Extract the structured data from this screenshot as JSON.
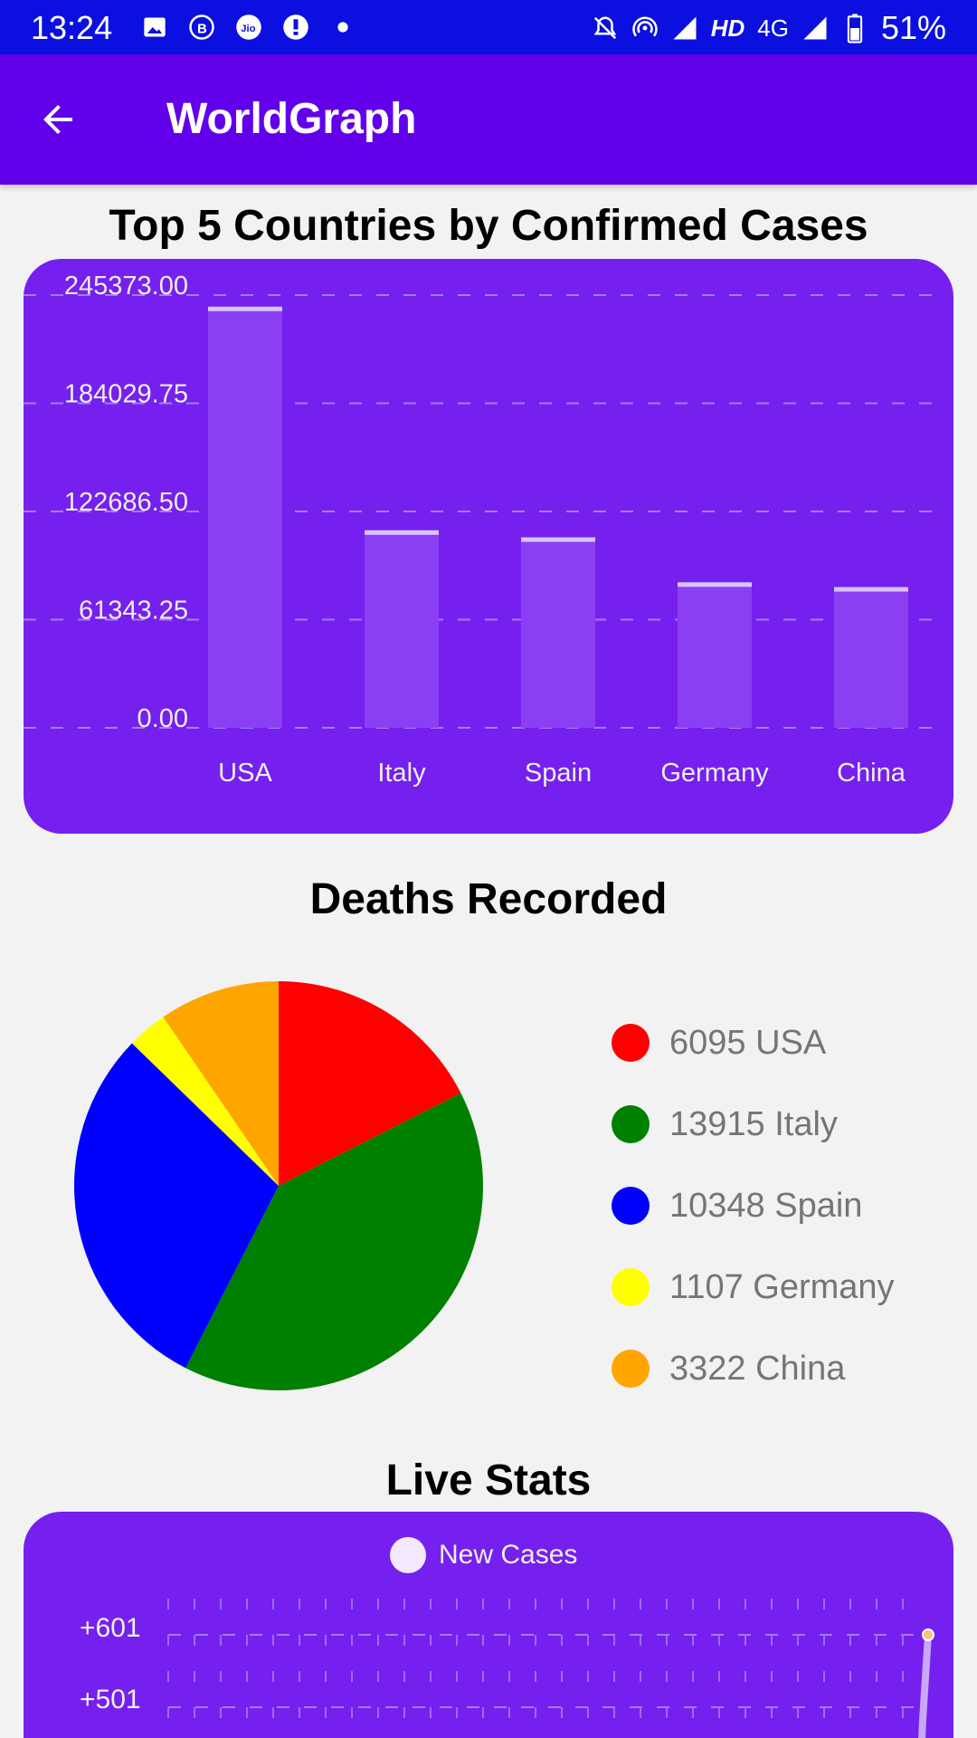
{
  "status_bar": {
    "time": "13:24",
    "network": "HD",
    "network_type": "4G",
    "battery": "51%",
    "icons": [
      "image-icon",
      "b-icon",
      "jio-icon",
      "location-icon",
      "dot-icon",
      "mute-icon",
      "hotspot-icon",
      "signal-icon",
      "battery-icon"
    ]
  },
  "app_bar": {
    "title": "WorldGraph",
    "back_icon": "arrow-back-icon"
  },
  "colors": {
    "status_bar": "#0b10e0",
    "app_bar": "#6200ea",
    "card": "#7520ee",
    "bar_fill": "#8a3ff3"
  },
  "bar_section": {
    "title": "Top 5 Countries by Confirmed Cases"
  },
  "pie_section": {
    "title": "Deaths Recorded"
  },
  "live_section": {
    "title": "Live Stats",
    "legend": "New Cases",
    "yticks": [
      "+601",
      "+501"
    ]
  },
  "chart_data": [
    {
      "type": "bar",
      "title": "Top 5 Countries by Confirmed Cases",
      "categories": [
        "USA",
        "Italy",
        "Spain",
        "Germany",
        "China"
      ],
      "values": [
        238820,
        112000,
        108000,
        82500,
        79800
      ],
      "ylim": [
        0,
        245373
      ],
      "ytick_labels": [
        "0.00",
        "61343.25",
        "122686.50",
        "184029.75",
        "245373.00"
      ],
      "ytick_values": [
        0,
        61343.25,
        122686.5,
        184029.75,
        245373
      ],
      "grid": true
    },
    {
      "type": "pie",
      "title": "Deaths Recorded",
      "labels": [
        "USA",
        "Italy",
        "Spain",
        "Germany",
        "China"
      ],
      "values": [
        6095,
        13915,
        10348,
        1107,
        3322
      ],
      "colors": [
        "#ff0000",
        "#008000",
        "#0000ff",
        "#ffff00",
        "#ffa500"
      ],
      "legend_labels": [
        "6095 USA",
        "13915 Italy",
        "10348 Spain",
        "1107 Germany",
        "3322 China"
      ],
      "legend": "right"
    },
    {
      "type": "line",
      "title": "Live Stats",
      "series": [
        {
          "name": "New Cases"
        }
      ],
      "ytick_labels": [
        "+601",
        "+501"
      ],
      "grid": true
    }
  ]
}
